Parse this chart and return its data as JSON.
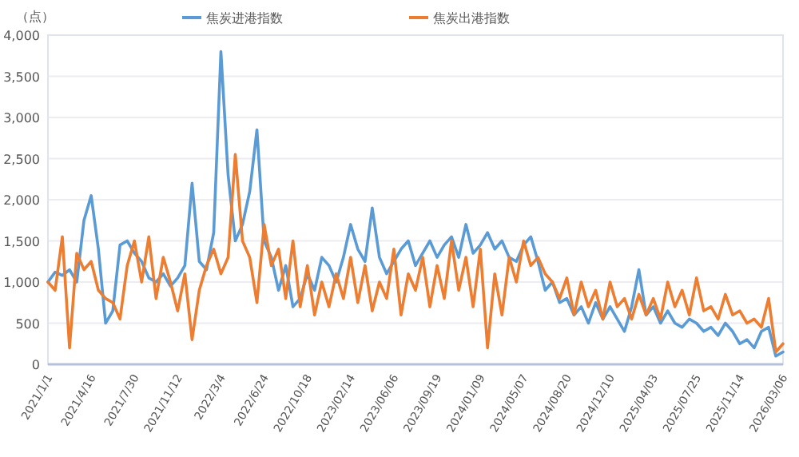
{
  "chart_data": {
    "type": "line",
    "ylabel": "（点）",
    "categories": [
      "2021/1/1",
      null,
      null,
      null,
      null,
      null,
      "2021/4/16",
      null,
      null,
      null,
      null,
      null,
      "2021/7/30",
      null,
      null,
      null,
      null,
      null,
      "2021/11/12",
      null,
      null,
      null,
      null,
      null,
      "2022/3/4",
      null,
      null,
      null,
      null,
      null,
      "2022/6/24",
      null,
      null,
      null,
      null,
      null,
      "2022/10/18",
      null,
      null,
      null,
      null,
      null,
      "2023/02/14",
      null,
      null,
      null,
      null,
      null,
      "2023/06/06",
      null,
      null,
      null,
      null,
      null,
      "2023/09/19",
      null,
      null,
      null,
      null,
      null,
      "2024/01/09",
      null,
      null,
      null,
      null,
      null,
      "2024/05/07",
      null,
      null,
      null,
      null,
      null,
      "2024/08/20",
      null,
      null,
      null,
      null,
      null,
      "2024/12/10",
      null,
      null,
      null,
      null,
      null,
      "2025/04/03",
      null,
      null,
      null,
      null,
      null,
      "2025/07/25",
      null,
      null,
      null,
      null,
      null,
      "2025/11/14",
      null,
      null,
      null,
      null,
      null,
      "2026/03/06"
    ],
    "series": [
      {
        "name": "焦炭进港指数",
        "color": "#5b9bd5",
        "values": [
          1000,
          1120,
          1080,
          1150,
          1000,
          1750,
          2050,
          1400,
          500,
          650,
          1450,
          1500,
          1350,
          1250,
          1050,
          1000,
          1100,
          950,
          1050,
          1200,
          2200,
          1250,
          1150,
          1600,
          3800,
          2300,
          1500,
          1700,
          2100,
          2850,
          1500,
          1300,
          900,
          1200,
          700,
          800,
          1100,
          900,
          1300,
          1200,
          1000,
          1300,
          1700,
          1400,
          1250,
          1900,
          1300,
          1100,
          1250,
          1400,
          1500,
          1200,
          1350,
          1500,
          1300,
          1450,
          1550,
          1300,
          1700,
          1350,
          1450,
          1600,
          1400,
          1500,
          1300,
          1250,
          1450,
          1550,
          1250,
          900,
          1000,
          750,
          800,
          600,
          700,
          500,
          750,
          550,
          700,
          550,
          400,
          700,
          1150,
          600,
          700,
          500,
          650,
          500,
          450,
          550,
          500,
          400,
          450,
          350,
          500,
          400,
          250,
          300,
          200,
          400,
          450,
          100,
          150
        ]
      },
      {
        "name": "焦炭出港指数",
        "color": "#ed7d31",
        "values": [
          1000,
          900,
          1550,
          200,
          1350,
          1150,
          1250,
          900,
          800,
          750,
          550,
          1200,
          1500,
          1000,
          1550,
          800,
          1300,
          1000,
          650,
          1100,
          300,
          900,
          1200,
          1400,
          1100,
          1300,
          2550,
          1500,
          1300,
          750,
          1700,
          1200,
          1400,
          800,
          1500,
          700,
          1200,
          600,
          1000,
          700,
          1100,
          800,
          1300,
          750,
          1200,
          650,
          1000,
          800,
          1400,
          600,
          1100,
          900,
          1300,
          700,
          1200,
          800,
          1500,
          900,
          1300,
          700,
          1400,
          200,
          1100,
          600,
          1300,
          1000,
          1500,
          1200,
          1300,
          1100,
          1000,
          800,
          1050,
          600,
          1000,
          700,
          900,
          550,
          1000,
          700,
          800,
          550,
          850,
          600,
          800,
          550,
          1000,
          700,
          900,
          600,
          1050,
          650,
          700,
          550,
          850,
          600,
          650,
          500,
          550,
          450,
          800,
          150,
          250
        ]
      }
    ],
    "ylim": [
      0,
      4000
    ],
    "yticks": [
      0,
      500,
      {
        "value": 1000,
        "label": "1,000"
      },
      {
        "value": 1500,
        "label": "1,500"
      },
      {
        "value": 2000,
        "label": "2,000"
      },
      {
        "value": 2500,
        "label": "2,500"
      },
      {
        "value": 3000,
        "label": "3,000"
      },
      {
        "value": 3500,
        "label": "3,500"
      },
      {
        "value": 4000,
        "label": "4,000"
      }
    ],
    "grid": "y",
    "legend": "top",
    "marker": "none",
    "line_style": "solid"
  }
}
